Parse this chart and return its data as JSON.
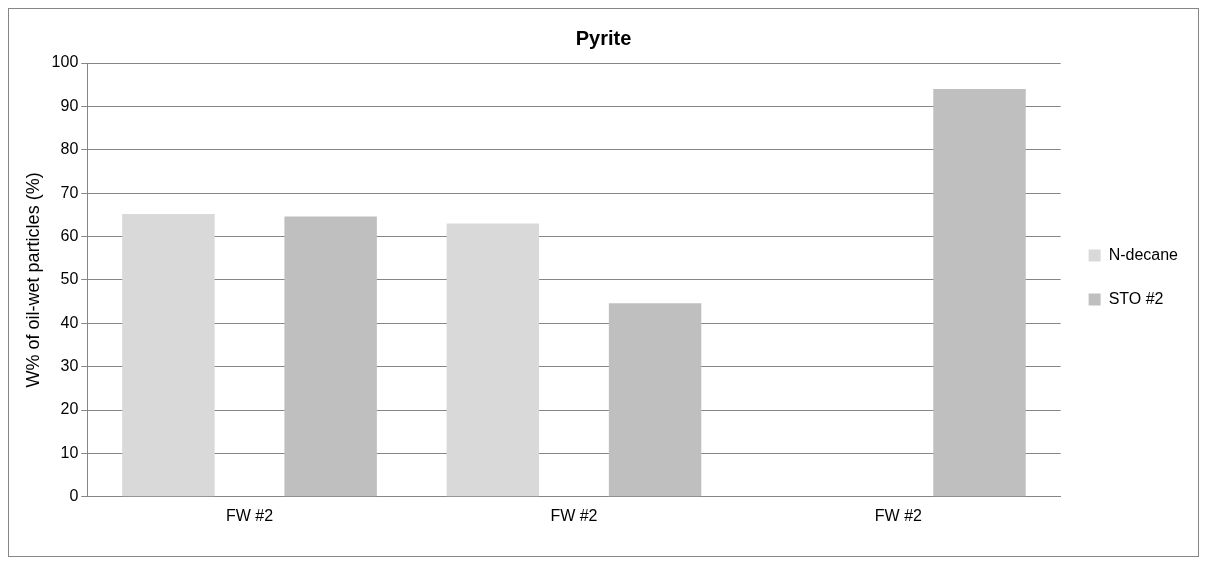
{
  "chart_data": {
    "type": "bar",
    "title": "Pyrite",
    "ylabel": "W% of oil-wet particles (%)",
    "categories": [
      "FW #2",
      "FW #2",
      "FW #2"
    ],
    "series": [
      {
        "name": "N-decane",
        "color": "#d9d9d9",
        "values": [
          65.2,
          63,
          null
        ]
      },
      {
        "name": "STO #2",
        "color": "#bfbfbf",
        "values": [
          64.6,
          44.6,
          94
        ]
      }
    ],
    "ylim": [
      0,
      100
    ],
    "yticks": [
      0,
      10,
      20,
      30,
      40,
      50,
      60,
      70,
      80,
      90,
      100
    ],
    "grid": "y",
    "legend": "right"
  }
}
